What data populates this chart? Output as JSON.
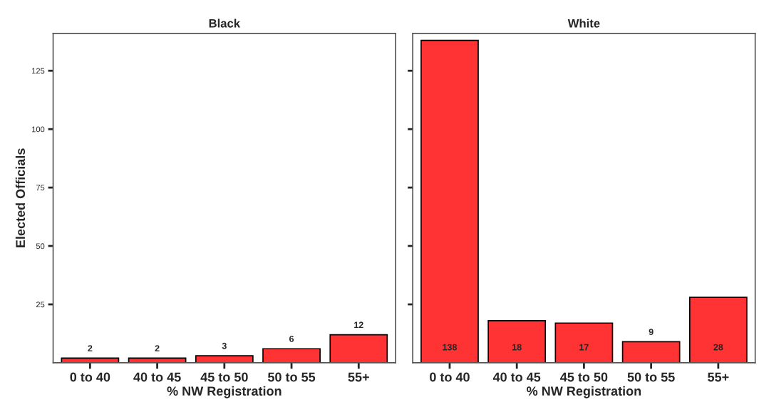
{
  "chart_data": [
    {
      "type": "bar",
      "title": "Black",
      "xlabel": "% NW Registration",
      "ylabel": "Elected Officials",
      "categories": [
        "0 to 40",
        "40 to 45",
        "45 to 50",
        "50 to 55",
        "55+"
      ],
      "values": [
        2,
        2,
        3,
        6,
        12
      ],
      "color": "#ff3333",
      "ylim": [
        0,
        141
      ],
      "yticks": [
        25,
        50,
        75,
        100,
        125
      ],
      "data_labels": true
    },
    {
      "type": "bar",
      "title": "White",
      "xlabel": "% NW Registration",
      "categories": [
        "0 to 40",
        "40 to 45",
        "45 to 50",
        "50 to 55",
        "55+"
      ],
      "values": [
        138,
        18,
        17,
        9,
        28
      ],
      "color": "#ff3333",
      "ylim": [
        0,
        141
      ],
      "yticks": [
        25,
        50,
        75,
        100,
        125
      ],
      "data_labels": true,
      "tick_labels": "x"
    }
  ]
}
